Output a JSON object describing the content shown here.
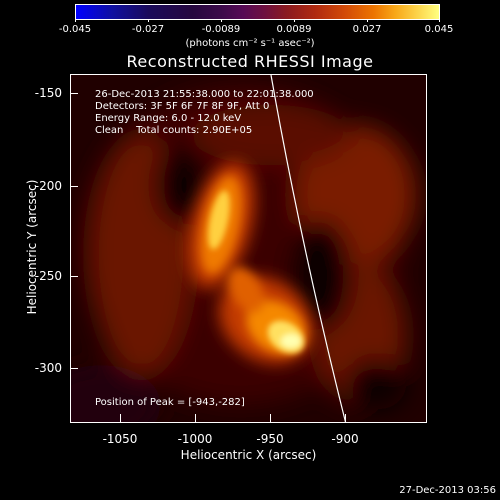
{
  "colorbar": {
    "ticks": [
      "-0.045",
      "-0.027",
      "-0.0089",
      "0.0089",
      "0.027",
      "0.045"
    ],
    "units": "(photons cm⁻² s⁻¹ asec⁻²)"
  },
  "title": "Reconstructed RHESSI Image",
  "info": {
    "time_range": "26-Dec-2013 21:55:38.000 to 22:01:38.000",
    "detectors": "Detectors: 3F 5F 6F 7F 8F 9F, Att 0",
    "energy": "Energy Range: 6.0 - 12.0 keV",
    "algorithm": "Clean    Total counts: 2.90E+05"
  },
  "peak_text": "Position of Peak = [-943,-282]",
  "axes": {
    "xlabel": "Heliocentric X (arcsec)",
    "ylabel": "Heliocentric Y (arcsec)",
    "xticks": [
      "-1050",
      "-1000",
      "-950",
      "-900"
    ],
    "yticks": [
      "-150",
      "-200",
      "-250",
      "-300"
    ]
  },
  "footer": "27-Dec-2013 03:56",
  "colors": {
    "background": "#000000",
    "line": "#ffffff"
  }
}
